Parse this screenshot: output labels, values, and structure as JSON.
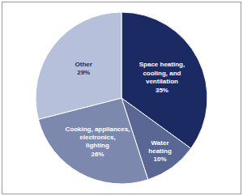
{
  "chart_data": {
    "type": "pie",
    "categories": [
      "Space heating, cooling, and ventilation",
      "Water heating",
      "Cooking, appliances, electronics, lighting",
      "Other"
    ],
    "values": [
      35,
      10,
      26,
      29
    ],
    "value_labels": [
      "35%",
      "10%",
      "26%",
      "29%"
    ],
    "colors": [
      "#1c2a64",
      "#5a6794",
      "#7d88af",
      "#b7c0da"
    ],
    "data_labels": true
  }
}
